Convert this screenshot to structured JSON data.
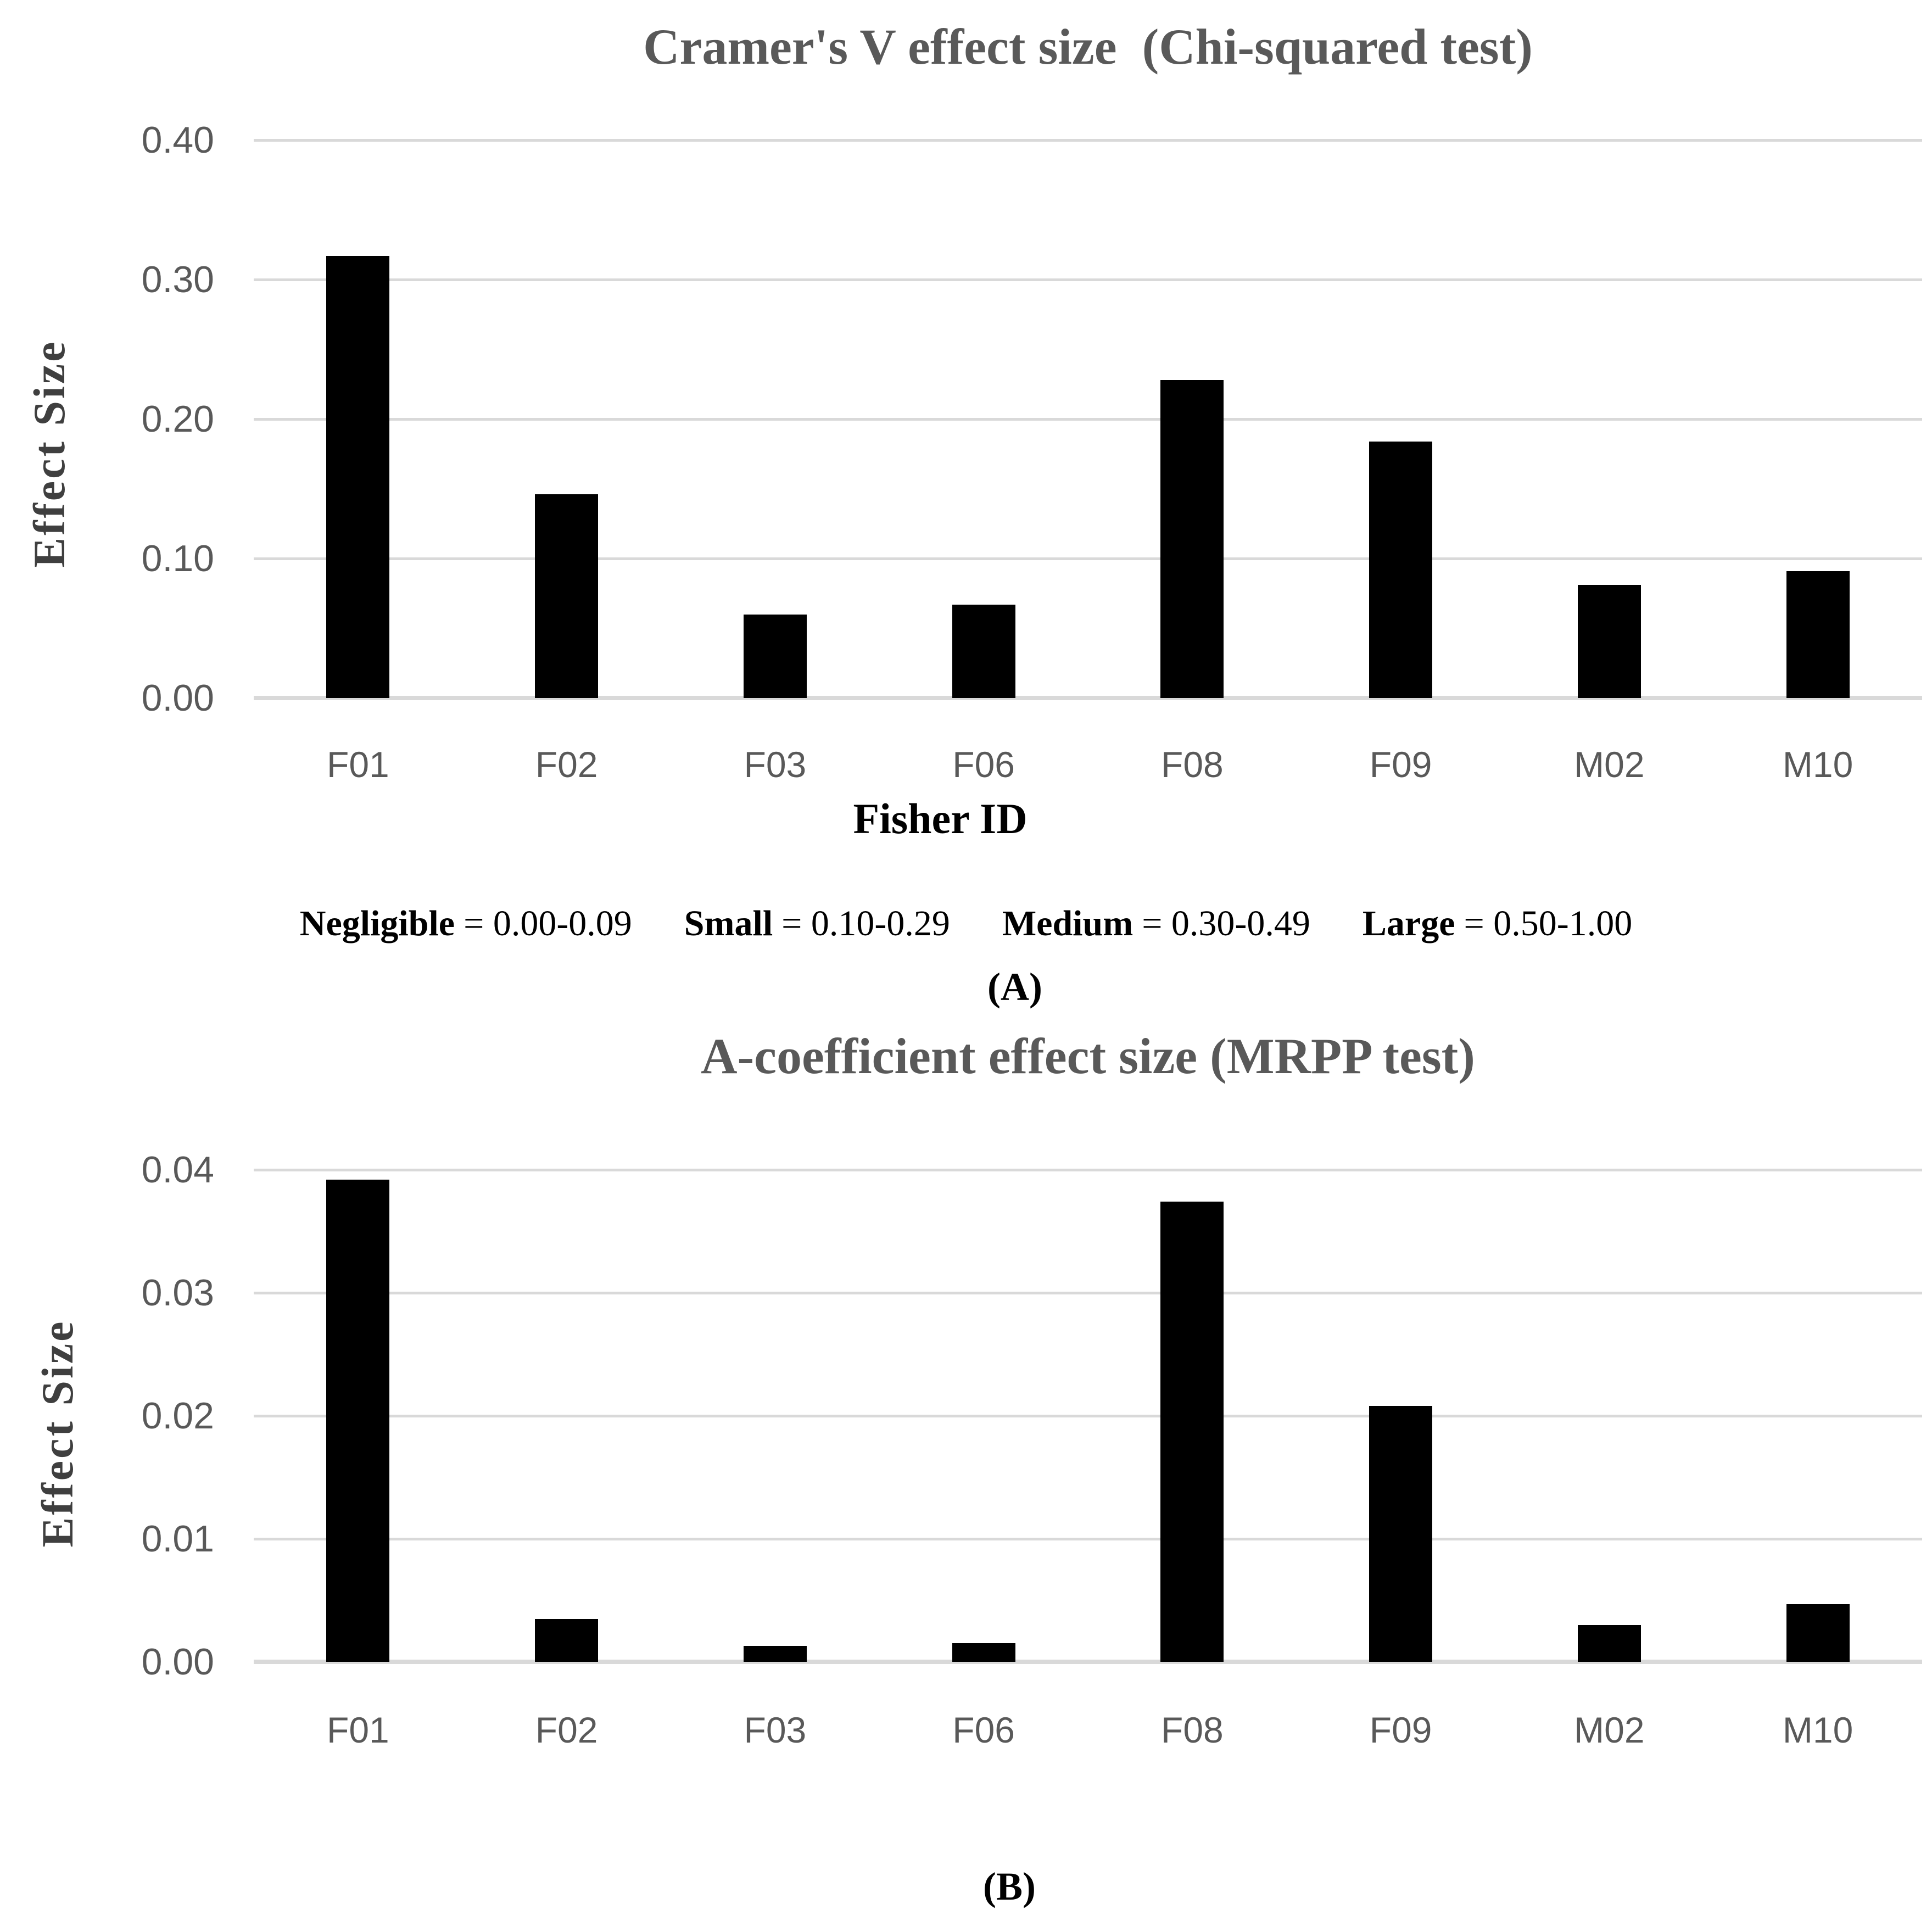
{
  "colors": {
    "bar": "#000000",
    "gridline": "#d9d9d9",
    "title_text": "#595959",
    "tick_text": "#595959",
    "axis_label_text": "#3f3f3f",
    "annotation_text": "#000000",
    "background": "#ffffff"
  },
  "chart_data": [
    {
      "type": "bar",
      "title": "Cramer's V effect size  (Chi-squared test)",
      "ylabel": "Effect Size",
      "xlabel": "Fisher ID",
      "panel_label": "(A)",
      "categories": [
        "F01",
        "F02",
        "F03",
        "F06",
        "F08",
        "F09",
        "M02",
        "M10"
      ],
      "values": [
        0.317,
        0.146,
        0.06,
        0.067,
        0.228,
        0.184,
        0.081,
        0.091
      ],
      "ylim": [
        0,
        0.4
      ],
      "ytick_labels": [
        "0.40",
        "0.30",
        "0.20",
        "0.10",
        "0.00"
      ],
      "grid": "horizontal",
      "legend_position": "none"
    },
    {
      "type": "bar",
      "title": "A-coefficient effect size (MRPP test)",
      "ylabel": "Effect Size",
      "xlabel": "",
      "panel_label": "(B)",
      "categories": [
        "F01",
        "F02",
        "F03",
        "F06",
        "F08",
        "F09",
        "M02",
        "M10"
      ],
      "values": [
        0.0392,
        0.0035,
        0.0013,
        0.0015,
        0.0374,
        0.0208,
        0.003,
        0.0047
      ],
      "ylim": [
        0,
        0.04
      ],
      "ytick_labels": [
        "0.04",
        "0.03",
        "0.02",
        "0.01",
        "0.00"
      ],
      "grid": "horizontal",
      "legend_position": "none"
    }
  ],
  "effect_size_key": {
    "items": [
      {
        "name": "Negligible",
        "range": "= 0.00-0.09"
      },
      {
        "name": "Small",
        "range": "= 0.10-0.29"
      },
      {
        "name": "Medium",
        "range": "= 0.30-0.49"
      },
      {
        "name": "Large",
        "range": "= 0.50-1.00"
      }
    ]
  }
}
